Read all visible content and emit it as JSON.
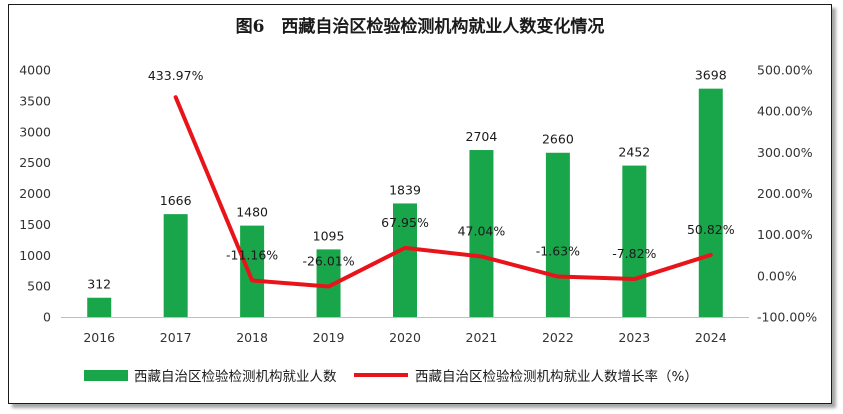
{
  "chart_data": {
    "type": "bar",
    "title": "图6　西藏自治区检验检测机构就业人数变化情况",
    "categories": [
      "2016",
      "2017",
      "2018",
      "2019",
      "2020",
      "2021",
      "2022",
      "2023",
      "2024"
    ],
    "series": [
      {
        "name": "西藏自治区检验检测机构就业人数",
        "kind": "bar",
        "axis": "left",
        "color": "#19a64b",
        "values": [
          312,
          1666,
          1480,
          1095,
          1839,
          2704,
          2660,
          2452,
          3698
        ],
        "labels": [
          "312",
          "1666",
          "1480",
          "1095",
          "1839",
          "2704",
          "2660",
          "2452",
          "3698"
        ]
      },
      {
        "name": "西藏自治区检验检测机构就业人数增长率（%）",
        "kind": "line",
        "axis": "right",
        "color": "#e8141a",
        "values": [
          null,
          433.97,
          -11.16,
          -26.01,
          67.95,
          47.04,
          -1.63,
          -7.82,
          50.82
        ],
        "labels": [
          "",
          "433.97%",
          "-11.16%",
          "-26.01%",
          "67.95%",
          "47.04%",
          "-1.63%",
          "-7.82%",
          "50.82%"
        ]
      }
    ],
    "y_left": {
      "ylim": [
        0,
        4000
      ],
      "ticks": [
        0,
        500,
        1000,
        1500,
        2000,
        2500,
        3000,
        3500,
        4000
      ],
      "tick_labels": [
        "0",
        "500",
        "1000",
        "1500",
        "2000",
        "2500",
        "3000",
        "3500",
        "4000"
      ]
    },
    "y_right": {
      "ylim": [
        -100,
        500
      ],
      "ticks": [
        -100,
        0,
        100,
        200,
        300,
        400,
        500
      ],
      "tick_labels": [
        "-100.00%",
        "0.00%",
        "100.00%",
        "200.00%",
        "300.00%",
        "400.00%",
        "500.00%"
      ]
    },
    "grid": false,
    "legend": "bottom"
  }
}
